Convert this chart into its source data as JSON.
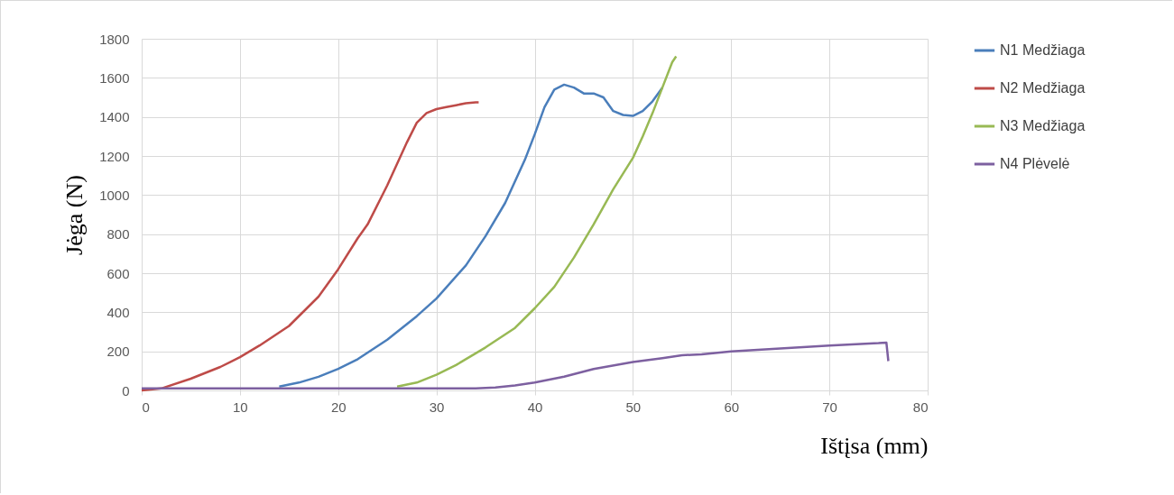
{
  "chart_data": {
    "type": "line",
    "xlabel": "Ištįsa (mm)",
    "ylabel": "Jėga (N)",
    "xlim": [
      0,
      80
    ],
    "ylim": [
      0,
      1800
    ],
    "xticks": [
      0,
      10,
      20,
      30,
      40,
      50,
      60,
      70,
      80
    ],
    "yticks": [
      0,
      200,
      400,
      600,
      800,
      1000,
      1200,
      1400,
      1600,
      1800
    ],
    "grid": true,
    "legend": "right",
    "marker": "none",
    "line_style": "solid",
    "series": [
      {
        "name": "N1 Medžiaga",
        "color": "#4a7ebb",
        "x": [
          14,
          16,
          18,
          20,
          22,
          25,
          28,
          30,
          33,
          35,
          37,
          39,
          40,
          41,
          42,
          43,
          44,
          45,
          46,
          47,
          48,
          49,
          50,
          51,
          52,
          53
        ],
        "values": [
          20,
          40,
          70,
          110,
          160,
          260,
          380,
          470,
          640,
          790,
          960,
          1180,
          1310,
          1450,
          1540,
          1565,
          1550,
          1520,
          1520,
          1500,
          1430,
          1410,
          1405,
          1430,
          1480,
          1550
        ]
      },
      {
        "name": "N2 Medžiaga",
        "color": "#be4b48",
        "x": [
          0,
          2,
          5,
          8,
          10,
          12,
          15,
          18,
          20,
          22,
          23,
          25,
          27,
          28,
          29,
          30,
          31,
          32,
          33,
          34,
          34.3
        ],
        "values": [
          0,
          10,
          60,
          120,
          170,
          230,
          330,
          480,
          620,
          780,
          850,
          1050,
          1270,
          1370,
          1420,
          1440,
          1450,
          1460,
          1470,
          1475,
          1475
        ]
      },
      {
        "name": "N3 Medžiaga",
        "color": "#98b954",
        "x": [
          26,
          28,
          30,
          32,
          35,
          38,
          40,
          42,
          44,
          46,
          48,
          50,
          51,
          52,
          53,
          54,
          54.4
        ],
        "values": [
          20,
          40,
          80,
          130,
          220,
          320,
          420,
          530,
          680,
          850,
          1030,
          1190,
          1300,
          1420,
          1550,
          1680,
          1710
        ]
      },
      {
        "name": "N4 Plėvelė",
        "color": "#7d60a0",
        "x": [
          0,
          10,
          20,
          30,
          34,
          36,
          38,
          40,
          43,
          46,
          50,
          53,
          55,
          57,
          60,
          65,
          70,
          75,
          75.8,
          76
        ],
        "values": [
          10,
          10,
          10,
          10,
          10,
          15,
          25,
          40,
          70,
          110,
          145,
          165,
          180,
          185,
          200,
          215,
          230,
          242,
          245,
          150
        ]
      }
    ]
  }
}
